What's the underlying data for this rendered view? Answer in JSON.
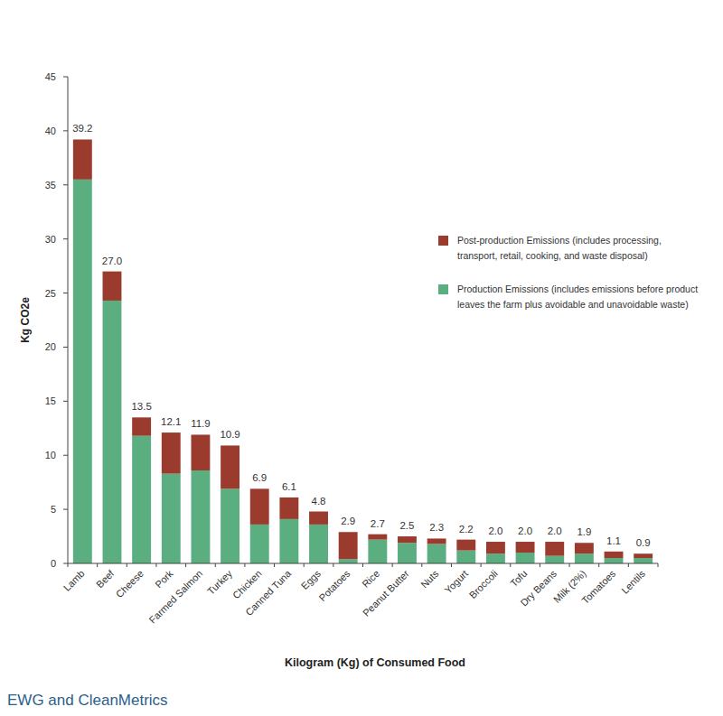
{
  "chart_data": {
    "type": "bar",
    "stacked": true,
    "x_label": "Kilogram (Kg) of Consumed Food",
    "y_label": "Kg CO2e",
    "source": "EWG and CleanMetrics",
    "categories": [
      "Lamb",
      "Beef",
      "Cheese",
      "Pork",
      "Farmed Salmon",
      "Turkey",
      "Chicken",
      "Canned Tuna",
      "Eggs",
      "Potatoes",
      "Rice",
      "Peanut Butter",
      "Nuts",
      "Yogurt",
      "Broccoli",
      "Tofu",
      "Dry Beans",
      "Milk (2%)",
      "Tomatoes",
      "Lentils"
    ],
    "series": [
      {
        "name": "Production Emissions (includes emissions before product leaves the farm plus avoidable and unavoidable waste)",
        "color": "#5aae7f",
        "values": [
          35.5,
          24.3,
          11.8,
          8.3,
          8.6,
          6.9,
          3.6,
          4.1,
          3.6,
          0.4,
          2.2,
          1.9,
          1.8,
          1.2,
          0.9,
          1.0,
          0.7,
          0.9,
          0.5,
          0.5
        ]
      },
      {
        "name": "Post-production Emissions (includes processing, transport, retail, cooking, and waste disposal)",
        "color": "#9a3b2e",
        "values": [
          3.7,
          2.7,
          1.7,
          3.8,
          3.3,
          4.0,
          3.3,
          2.0,
          1.2,
          2.5,
          0.5,
          0.6,
          0.5,
          1.0,
          1.1,
          1.0,
          1.3,
          1.0,
          0.6,
          0.4
        ]
      }
    ],
    "totals": [
      39.2,
      27.0,
      13.5,
      12.1,
      11.9,
      10.9,
      6.9,
      6.1,
      4.8,
      2.9,
      2.7,
      2.5,
      2.3,
      2.2,
      2.0,
      2.0,
      2.0,
      1.9,
      1.1,
      0.9
    ],
    "totals_labels": [
      "39.2",
      "27.0",
      "13.5",
      "12.1",
      "11.9",
      "10.9",
      "6.9",
      "6.1",
      "4.8",
      "2.9",
      "2.7",
      "2.5",
      "2.3",
      "2.2",
      "2.0",
      "2.0",
      "2.0",
      "1.9",
      "1.1",
      "0.9"
    ],
    "ylim": [
      0,
      45
    ],
    "yticks": [
      0,
      5,
      10,
      15,
      20,
      25,
      30,
      35,
      40,
      45
    ],
    "grid": false,
    "legend": "right"
  }
}
